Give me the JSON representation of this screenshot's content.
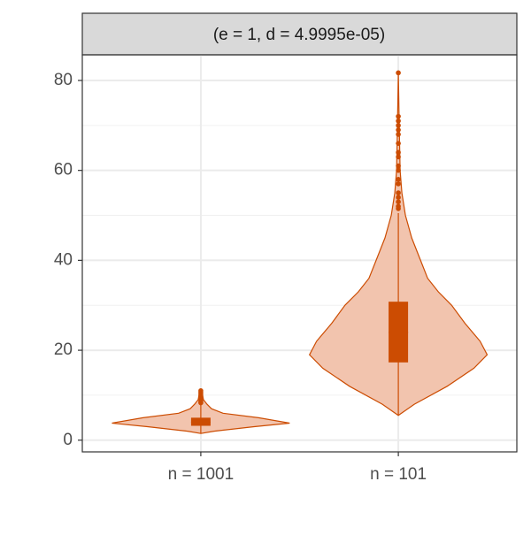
{
  "chart_data": {
    "type": "violin",
    "strip": "(e = 1, d = 4.9995e-05)",
    "categories": [
      "n = 1001",
      "n = 101"
    ],
    "ylim": [
      -2.6,
      85.7
    ],
    "yticks": [
      0,
      20,
      40,
      60,
      80
    ],
    "y_minor_ticks": [
      10,
      30,
      50,
      70
    ],
    "grid": true,
    "fill": "#f2c4ae",
    "color": "#cc4c02",
    "violins": [
      {
        "density": {
          "y": [
            1.5,
            2,
            3,
            3.8,
            5,
            6,
            7,
            8,
            9,
            10,
            11
          ],
          "width": [
            0,
            0.15,
            0.6,
            1,
            0.65,
            0.25,
            0.12,
            0.07,
            0.03,
            0.02,
            0
          ]
        },
        "whisker_low": 1.5,
        "q1": 3.2,
        "median": 4,
        "q3": 5,
        "whisker_high": 8,
        "outliers": [
          8.3,
          8.6,
          9,
          9.4,
          9.8,
          10.2,
          10.6,
          11
        ]
      },
      {
        "density": {
          "y": [
            5.5,
            8,
            12,
            16,
            19,
            22,
            26,
            30,
            33,
            36,
            40,
            45,
            50,
            55,
            60,
            70,
            81.7
          ],
          "width": [
            0,
            0.18,
            0.55,
            0.85,
            1,
            0.92,
            0.75,
            0.6,
            0.45,
            0.33,
            0.25,
            0.15,
            0.08,
            0.04,
            0.02,
            0.01,
            0
          ]
        },
        "whisker_low": 5.5,
        "q1": 17.3,
        "median": 24,
        "q3": 30.8,
        "whisker_high": 50.5,
        "outliers": [
          51.5,
          52,
          53,
          54,
          55,
          57,
          58,
          60,
          61,
          63,
          64,
          66,
          68,
          69,
          70,
          71,
          72,
          81.7
        ]
      }
    ]
  }
}
